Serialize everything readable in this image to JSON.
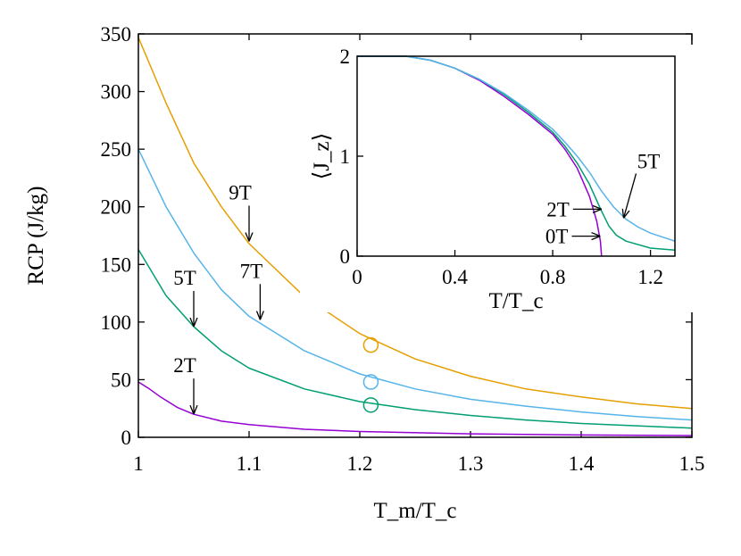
{
  "chart_data": [
    {
      "type": "line",
      "xlabel": "T_m/T_c",
      "ylabel": "RCP (J/kg)",
      "xlim": [
        1,
        1.5
      ],
      "ylim": [
        0,
        350
      ],
      "xticks": [
        "1",
        "1.1",
        "1.2",
        "1.3",
        "1.4",
        "1.5"
      ],
      "yticks": [
        "0",
        "50",
        "100",
        "150",
        "200",
        "250",
        "300",
        "350"
      ],
      "grid": false,
      "series": [
        {
          "name": "9T",
          "color": "#e69f00",
          "x": [
            1.0,
            1.025,
            1.05,
            1.075,
            1.1,
            1.15,
            1.2,
            1.25,
            1.3,
            1.35,
            1.4,
            1.45,
            1.5
          ],
          "y": [
            347,
            290,
            238,
            200,
            168,
            122,
            90,
            68,
            53,
            42,
            35,
            29,
            25
          ]
        },
        {
          "name": "7T",
          "color": "#56b4e9",
          "x": [
            1.0,
            1.025,
            1.05,
            1.075,
            1.1,
            1.15,
            1.2,
            1.25,
            1.3,
            1.35,
            1.4,
            1.45,
            1.5
          ],
          "y": [
            250,
            200,
            160,
            128,
            105,
            75,
            55,
            42,
            33,
            27,
            22,
            18,
            15
          ]
        },
        {
          "name": "5T",
          "color": "#009e73",
          "x": [
            1.0,
            1.025,
            1.05,
            1.075,
            1.1,
            1.15,
            1.2,
            1.25,
            1.3,
            1.35,
            1.4,
            1.45,
            1.5
          ],
          "y": [
            163,
            123,
            96,
            75,
            60,
            42,
            31,
            24,
            19,
            15,
            12,
            10,
            8
          ]
        },
        {
          "name": "2T",
          "color": "#9400d3",
          "x": [
            1.0,
            1.01,
            1.02,
            1.035,
            1.05,
            1.075,
            1.1,
            1.15,
            1.2,
            1.3,
            1.4,
            1.5
          ],
          "y": [
            48,
            42,
            35,
            26,
            20,
            14,
            11,
            7,
            5,
            3,
            2,
            1.5
          ]
        }
      ],
      "markers": [
        {
          "x": 1.21,
          "y": 80,
          "color": "#e69f00"
        },
        {
          "x": 1.21,
          "y": 48,
          "color": "#56b4e9"
        },
        {
          "x": 1.21,
          "y": 28,
          "color": "#009e73"
        }
      ],
      "annotations": [
        {
          "text": "9T",
          "x": 1.1,
          "y": 170
        },
        {
          "text": "7T",
          "x": 1.11,
          "y": 102
        },
        {
          "text": "5T",
          "x": 1.05,
          "y": 96
        },
        {
          "text": "2T",
          "x": 1.05,
          "y": 20
        }
      ]
    },
    {
      "type": "line",
      "xlabel": "T/T_c",
      "ylabel": "⟨J_z⟩",
      "xlim": [
        0,
        1.3
      ],
      "ylim": [
        0,
        2
      ],
      "xticks": [
        "0",
        "0.4",
        "0.8",
        "1.2"
      ],
      "yticks": [
        "0",
        "1",
        "2"
      ],
      "grid": false,
      "series": [
        {
          "name": "0T",
          "color": "#9400d3",
          "x": [
            0,
            0.2,
            0.3,
            0.4,
            0.5,
            0.6,
            0.7,
            0.8,
            0.85,
            0.9,
            0.95,
            0.98,
            0.995,
            1.0
          ],
          "y": [
            2,
            2,
            1.96,
            1.88,
            1.76,
            1.6,
            1.42,
            1.22,
            1.07,
            0.88,
            0.6,
            0.35,
            0.15,
            0
          ]
        },
        {
          "name": "2T",
          "color": "#009e73",
          "x": [
            0,
            0.2,
            0.3,
            0.4,
            0.5,
            0.6,
            0.7,
            0.8,
            0.85,
            0.9,
            0.95,
            1.0,
            1.03,
            1.06,
            1.1,
            1.2,
            1.3
          ],
          "y": [
            2,
            2,
            1.96,
            1.88,
            1.77,
            1.62,
            1.44,
            1.24,
            1.1,
            0.93,
            0.72,
            0.45,
            0.3,
            0.21,
            0.15,
            0.08,
            0.06
          ]
        },
        {
          "name": "5T",
          "color": "#56b4e9",
          "x": [
            0,
            0.2,
            0.3,
            0.4,
            0.5,
            0.6,
            0.7,
            0.8,
            0.85,
            0.9,
            0.95,
            1.0,
            1.05,
            1.1,
            1.15,
            1.2,
            1.3
          ],
          "y": [
            2,
            2,
            1.96,
            1.88,
            1.77,
            1.63,
            1.46,
            1.27,
            1.14,
            1.0,
            0.84,
            0.65,
            0.49,
            0.37,
            0.29,
            0.23,
            0.15
          ]
        }
      ],
      "annotations": [
        {
          "text": "5T",
          "x": 1.09,
          "y": 0.38
        },
        {
          "text": "2T",
          "x": 1.0,
          "y": 0.47
        },
        {
          "text": "0T",
          "x": 0.995,
          "y": 0.2
        }
      ]
    }
  ]
}
